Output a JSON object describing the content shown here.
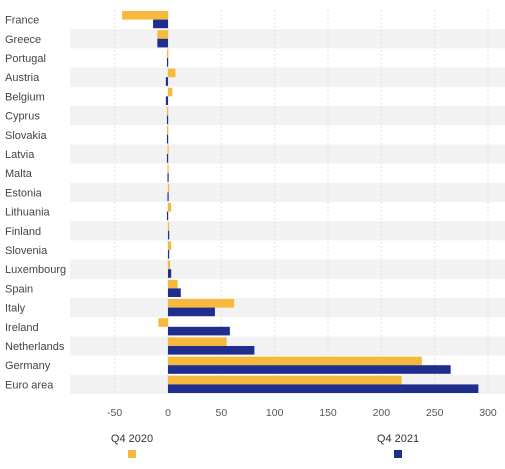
{
  "chart_data": {
    "type": "bar",
    "orientation": "horizontal",
    "categories": [
      "France",
      "Greece",
      "Portugal",
      "Austria",
      "Belgium",
      "Cyprus",
      "Slovakia",
      "Latvia",
      "Malta",
      "Estonia",
      "Lithuania",
      "Finland",
      "Slovenia",
      "Luxembourg",
      "Spain",
      "Italy",
      "Ireland",
      "Netherlands",
      "Germany",
      "Euro area"
    ],
    "series": [
      {
        "name": "Q4 2020",
        "color": "#F6B93B",
        "values": [
          -43,
          -10,
          -1,
          7,
          4,
          -1,
          -1,
          -0.5,
          -0.5,
          0.5,
          3,
          1,
          3,
          2,
          9,
          62,
          -9,
          55,
          238,
          219
        ]
      },
      {
        "name": "Q4 2021",
        "color": "#1F2D8C",
        "values": [
          -14,
          -10,
          -1,
          -2,
          -2,
          -1,
          -1,
          -1,
          -0.5,
          -0.5,
          -1,
          1,
          1,
          3,
          12,
          44,
          58,
          81,
          265,
          291
        ]
      }
    ],
    "xticks": [
      -50,
      0,
      50,
      100,
      150,
      200,
      250,
      300
    ],
    "xlim": [
      -90,
      310
    ],
    "grid": true,
    "legend_position": "bottom",
    "title": "",
    "xlabel": "",
    "ylabel": ""
  }
}
